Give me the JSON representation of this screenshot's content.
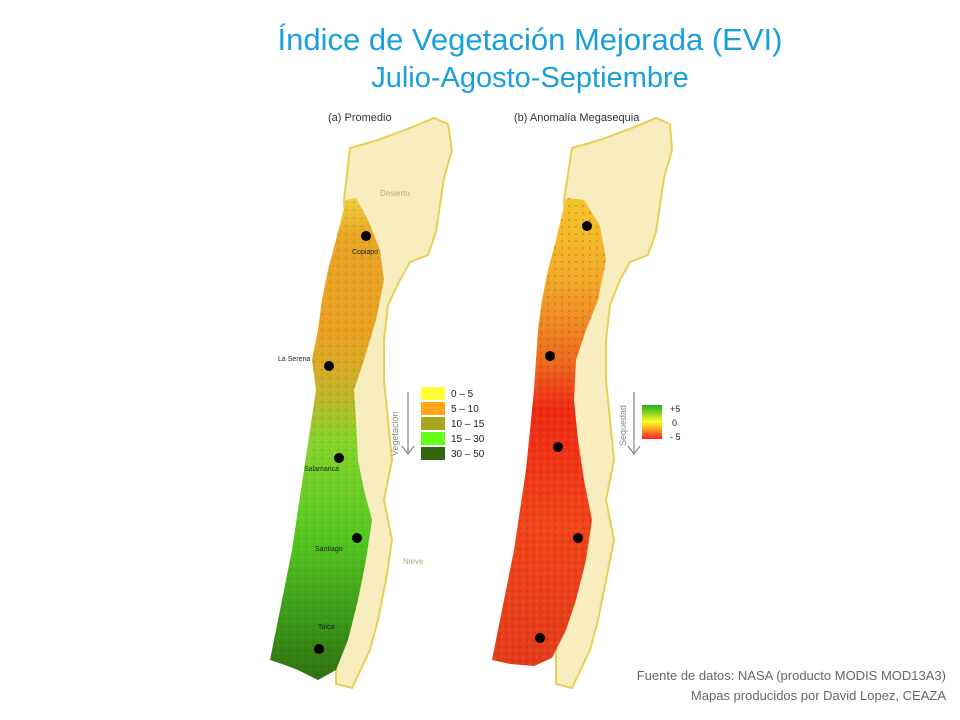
{
  "title": "Índice de Vegetación Mejorada (EVI)",
  "subtitle": "Julio-Agosto-Septiembre",
  "panel_a": {
    "label": "(a) Promedio",
    "region_labels": {
      "desert": "Desierto",
      "snow": "Nieve"
    },
    "cities": [
      {
        "name": "Copiapo"
      },
      {
        "name": "La Serena"
      },
      {
        "name": "Salamanca"
      },
      {
        "name": "Santiago"
      },
      {
        "name": "Talca"
      }
    ],
    "legend": {
      "axis_label": "Vegetación",
      "items": [
        {
          "label": "0 – 5",
          "color": "#ffff33"
        },
        {
          "label": "5 – 10",
          "color": "#ffa51a"
        },
        {
          "label": "10 – 15",
          "color": "#a9a622"
        },
        {
          "label": "15 – 30",
          "color": "#66ff1a"
        },
        {
          "label": "30 – 50",
          "color": "#336611"
        }
      ]
    }
  },
  "panel_b": {
    "label": "(b) Anomalía Megasequia",
    "legend": {
      "axis_label": "Sequedad",
      "ticks": [
        "+5",
        "0",
        "- 5"
      ],
      "colors": [
        "#22aa22",
        "#ffff22",
        "#ff2222"
      ]
    }
  },
  "footer": {
    "line1": "Fuente de datos: NASA (producto MODIS MOD13A3)",
    "line2": "Mapas producidos por David Lopez, CEAZA"
  }
}
